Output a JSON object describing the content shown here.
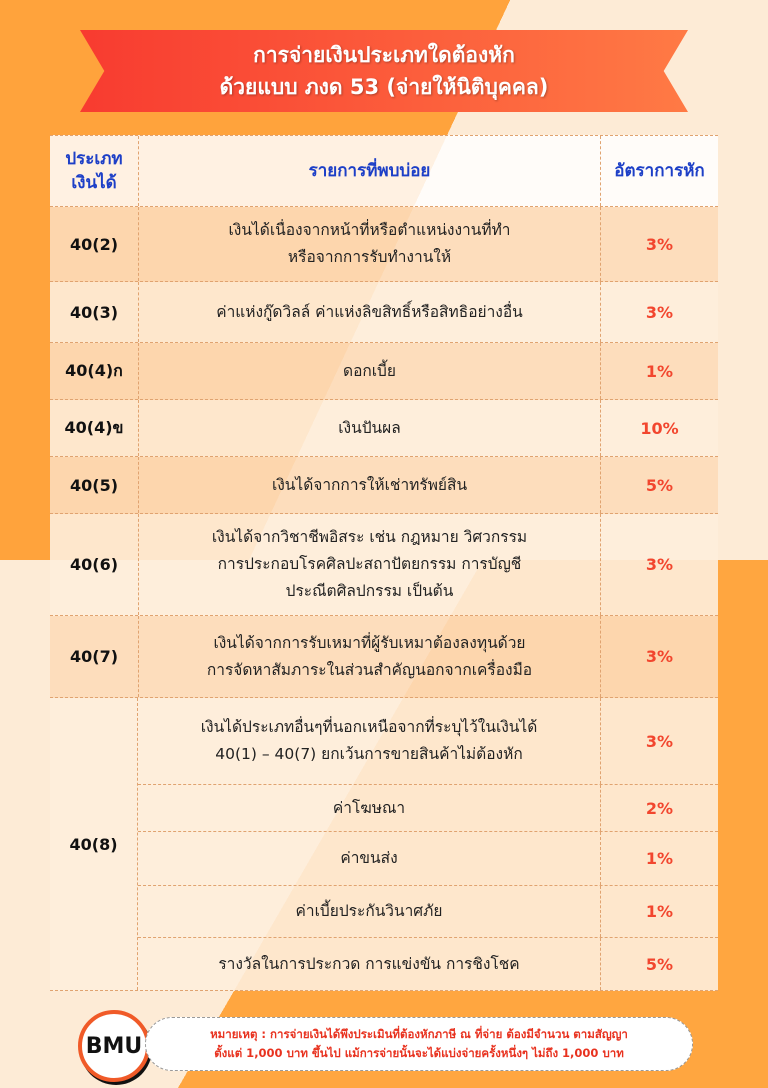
{
  "title": {
    "line1": "การจ่ายเงินประเภทใดต้องหัก",
    "line2": "ด้วยแบบ ภงด 53 (จ่ายให้นิติบุคคล)"
  },
  "headers": {
    "type": "ประเภท\nเงินได้",
    "items": "รายการที่พบบ่อย",
    "rate": "อัตราการหัก"
  },
  "rows": [
    {
      "code": "40(2)",
      "desc": "เงินได้เนื่องจากหน้าที่หรือตำแหน่งงานที่ทำ\nหรือจากการรับทำงานให้",
      "rate": "3%"
    },
    {
      "code": "40(3)",
      "desc": "ค่าแห่งกู๊ดวิลล์ ค่าแห่งลิขสิทธิ์หรือสิทธิอย่างอื่น",
      "rate": "3%"
    },
    {
      "code": "40(4)ก",
      "desc": "ดอกเบี้ย",
      "rate": "1%"
    },
    {
      "code": "40(4)ข",
      "desc": "เงินปันผล",
      "rate": "10%"
    },
    {
      "code": "40(5)",
      "desc": "เงินได้จากการให้เช่าทรัพย์สิน",
      "rate": "5%"
    },
    {
      "code": "40(6)",
      "desc": "เงินได้จากวิชาชีพอิสระ เช่น กฎหมาย วิศวกรรม\nการประกอบโรคศิลปะสถาปัตยกรรม การบัญชี\nประณีตศิลปกรรม เป็นต้น",
      "rate": "3%"
    },
    {
      "code": "40(7)",
      "desc": "เงินได้จากการรับเหมาที่ผู้รับเหมาต้องลงทุนด้วย\nการจัดหาสัมภาระในส่วนสำคัญนอกจากเครื่องมือ",
      "rate": "3%"
    }
  ],
  "group": {
    "code": "40(8)",
    "items": [
      {
        "desc": "เงินได้ประเภทอื่นๆที่นอกเหนือจากที่ระบุไว้ในเงินได้\n40(1) – 40(7) ยกเว้นการขายสินค้าไม่ต้องหัก",
        "rate": "3%"
      },
      {
        "desc": "ค่าโฆษณา",
        "rate": "2%"
      },
      {
        "desc": "ค่าขนส่ง",
        "rate": "1%"
      },
      {
        "desc": "ค่าเบี้ยประกันวินาศภัย",
        "rate": "1%"
      },
      {
        "desc": "รางวัลในการประกวด การแข่งขัน การชิงโชค",
        "rate": "5%"
      }
    ]
  },
  "footer": {
    "line1": "หมายเหตุ : การจ่ายเงินได้พึงประเมินที่ต้องหักภาษี ณ ที่จ่าย ต้องมีจำนวน ตามสัญญา",
    "line2": "ตั้งแต่ 1,000 บาท ขึ้นไป แม้การจ่ายนั้นจะได้แบ่งจ่ายครั้งหนึ่งๆ ไม่ถึง 1,000 บาท"
  },
  "logo": "BMU"
}
